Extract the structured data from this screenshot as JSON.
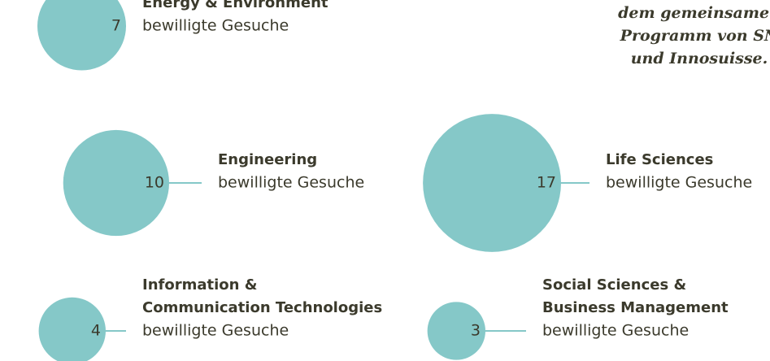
{
  "chart_data": {
    "type": "bubble",
    "categories": [
      [
        "Energy & Environment"
      ],
      [
        "Engineering"
      ],
      [
        "Life Sciences"
      ],
      [
        "Information &",
        "Communication Technologies"
      ],
      [
        "Social Sciences &",
        "Business Management"
      ]
    ],
    "values": [
      7,
      10,
      17,
      4,
      3
    ],
    "value_caption": "bewilligte Gesuche",
    "color": "#85c8c8",
    "annotation": [
      "dem gemeinsamen",
      "Programm von SN",
      "und Innosuisse."
    ]
  }
}
